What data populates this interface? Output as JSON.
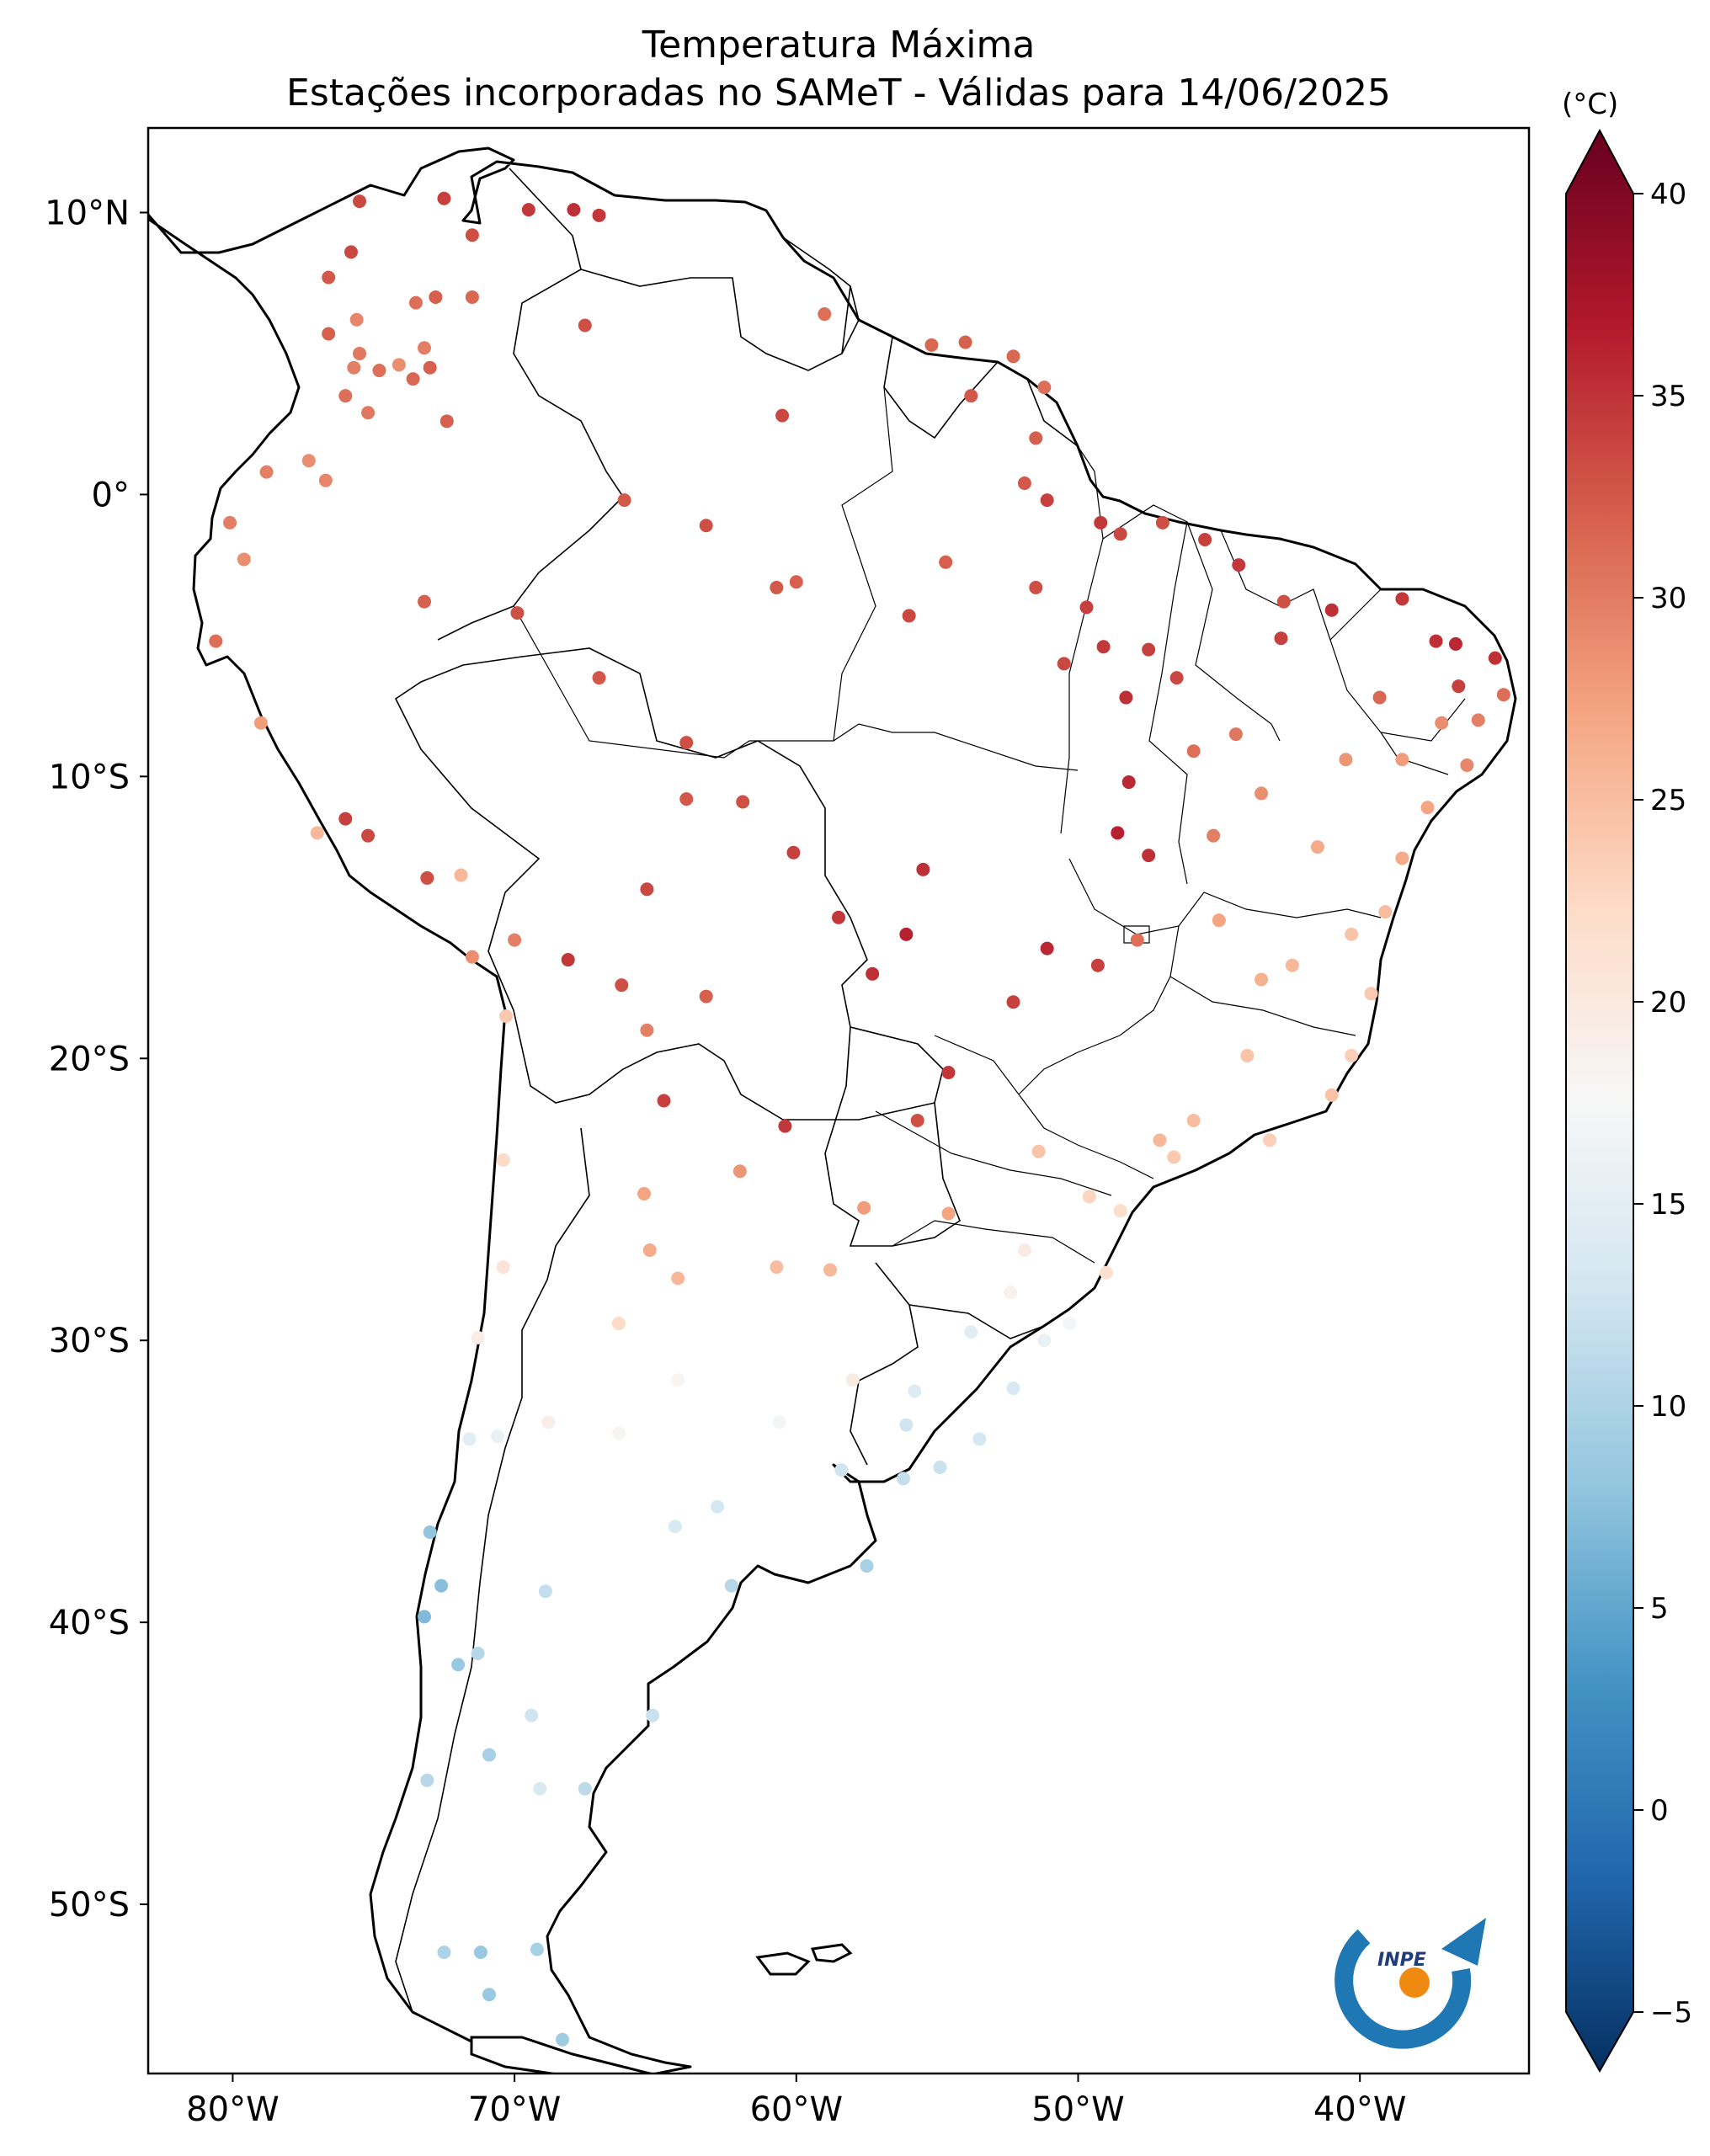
{
  "title": {
    "line1": "Temperatura Máxima",
    "line2": "Estações incorporadas no SAMeT - Válidas para 14/06/2025"
  },
  "map": {
    "projection": "PlateCarree",
    "extent": {
      "lon_min": -83,
      "lon_max": -34,
      "lat_min": -56,
      "lat_max": 13
    },
    "lon_ticks": [
      {
        "value": -80,
        "label": "80°W"
      },
      {
        "value": -70,
        "label": "70°W"
      },
      {
        "value": -60,
        "label": "60°W"
      },
      {
        "value": -50,
        "label": "50°W"
      },
      {
        "value": -40,
        "label": "40°W"
      }
    ],
    "lat_ticks": [
      {
        "value": 10,
        "label": "10°N"
      },
      {
        "value": 0,
        "label": "0°"
      },
      {
        "value": -10,
        "label": "10°S"
      },
      {
        "value": -20,
        "label": "20°S"
      },
      {
        "value": -30,
        "label": "30°S"
      },
      {
        "value": -40,
        "label": "40°S"
      },
      {
        "value": -50,
        "label": "50°S"
      }
    ],
    "logo_text": "INPE"
  },
  "colorbar": {
    "unit": "(°C)",
    "cmap": "RdBu_r",
    "vmin": -5,
    "vmax": 40,
    "extend": "both",
    "ticks": [
      -5,
      0,
      5,
      10,
      15,
      20,
      25,
      30,
      35,
      40
    ],
    "colors": [
      "#053061",
      "#2166ac",
      "#4393c3",
      "#92c5de",
      "#d1e5f0",
      "#f7f7f7",
      "#fddbc7",
      "#f4a582",
      "#d6604d",
      "#b2182b",
      "#67001f"
    ]
  },
  "stations": [
    {
      "lon": -75.5,
      "lat": 10.4,
      "t": 32.5
    },
    {
      "lon": -72.5,
      "lat": 10.5,
      "t": 33
    },
    {
      "lon": -69.5,
      "lat": 10.1,
      "t": 33.5
    },
    {
      "lon": -67.9,
      "lat": 10.1,
      "t": 34
    },
    {
      "lon": -67.0,
      "lat": 9.9,
      "t": 33.5
    },
    {
      "lon": -71.5,
      "lat": 9.2,
      "t": 32
    },
    {
      "lon": -75.8,
      "lat": 8.6,
      "t": 32.5
    },
    {
      "lon": -76.6,
      "lat": 7.7,
      "t": 31.5
    },
    {
      "lon": -73.5,
      "lat": 6.8,
      "t": 30
    },
    {
      "lon": -72.8,
      "lat": 7.0,
      "t": 31
    },
    {
      "lon": -71.5,
      "lat": 7.0,
      "t": 30.5
    },
    {
      "lon": -67.5,
      "lat": 6.0,
      "t": 32
    },
    {
      "lon": -75.6,
      "lat": 6.2,
      "t": 28.5
    },
    {
      "lon": -76.6,
      "lat": 5.7,
      "t": 31
    },
    {
      "lon": -75.5,
      "lat": 5.0,
      "t": 29.5
    },
    {
      "lon": -74.1,
      "lat": 4.6,
      "t": 28
    },
    {
      "lon": -75.7,
      "lat": 4.5,
      "t": 29
    },
    {
      "lon": -73.0,
      "lat": 4.5,
      "t": 31
    },
    {
      "lon": -74.8,
      "lat": 4.4,
      "t": 30
    },
    {
      "lon": -73.2,
      "lat": 5.2,
      "t": 29
    },
    {
      "lon": -73.6,
      "lat": 4.1,
      "t": 30.5
    },
    {
      "lon": -75.2,
      "lat": 2.9,
      "t": 29.5
    },
    {
      "lon": -76.0,
      "lat": 3.5,
      "t": 30
    },
    {
      "lon": -72.4,
      "lat": 2.6,
      "t": 31
    },
    {
      "lon": -77.3,
      "lat": 1.2,
      "t": 28
    },
    {
      "lon": -78.8,
      "lat": 0.8,
      "t": 29
    },
    {
      "lon": -76.7,
      "lat": 0.5,
      "t": 28.5
    },
    {
      "lon": -80.1,
      "lat": -1.0,
      "t": 29
    },
    {
      "lon": -79.6,
      "lat": -2.3,
      "t": 28
    },
    {
      "lon": -66.1,
      "lat": -0.2,
      "t": 31.5
    },
    {
      "lon": -63.2,
      "lat": -1.1,
      "t": 32
    },
    {
      "lon": -60.5,
      "lat": 2.8,
      "t": 32.5
    },
    {
      "lon": -59.0,
      "lat": 6.4,
      "t": 30
    },
    {
      "lon": -55.2,
      "lat": 5.3,
      "t": 30.5
    },
    {
      "lon": -54.0,
      "lat": 5.4,
      "t": 31
    },
    {
      "lon": -52.3,
      "lat": 4.9,
      "t": 30.5
    },
    {
      "lon": -53.8,
      "lat": 3.5,
      "t": 31.5
    },
    {
      "lon": -51.2,
      "lat": 3.8,
      "t": 30
    },
    {
      "lon": -51.5,
      "lat": 2.0,
      "t": 31
    },
    {
      "lon": -51.9,
      "lat": 0.4,
      "t": 31.5
    },
    {
      "lon": -51.1,
      "lat": -0.2,
      "t": 33
    },
    {
      "lon": -49.2,
      "lat": -1.0,
      "t": 33.5
    },
    {
      "lon": -48.5,
      "lat": -1.4,
      "t": 32.5
    },
    {
      "lon": -47.0,
      "lat": -1.0,
      "t": 32
    },
    {
      "lon": -45.5,
      "lat": -1.6,
      "t": 33
    },
    {
      "lon": -44.3,
      "lat": -2.5,
      "t": 33.5
    },
    {
      "lon": -42.7,
      "lat": -3.8,
      "t": 32
    },
    {
      "lon": -41.0,
      "lat": -4.1,
      "t": 34
    },
    {
      "lon": -38.5,
      "lat": -3.7,
      "t": 33.5
    },
    {
      "lon": -37.3,
      "lat": -5.2,
      "t": 34
    },
    {
      "lon": -36.6,
      "lat": -5.3,
      "t": 34.5
    },
    {
      "lon": -35.2,
      "lat": -5.8,
      "t": 34
    },
    {
      "lon": -36.5,
      "lat": -6.8,
      "t": 33
    },
    {
      "lon": -34.9,
      "lat": -7.1,
      "t": 30
    },
    {
      "lon": -35.8,
      "lat": -8.0,
      "t": 29
    },
    {
      "lon": -37.1,
      "lat": -8.1,
      "t": 28
    },
    {
      "lon": -38.5,
      "lat": -9.4,
      "t": 27
    },
    {
      "lon": -36.2,
      "lat": -9.6,
      "t": 28.5
    },
    {
      "lon": -37.6,
      "lat": -11.1,
      "t": 26.5
    },
    {
      "lon": -38.5,
      "lat": -12.9,
      "t": 26
    },
    {
      "lon": -39.1,
      "lat": -14.8,
      "t": 24.5
    },
    {
      "lon": -40.3,
      "lat": -15.6,
      "t": 24
    },
    {
      "lon": -39.6,
      "lat": -17.7,
      "t": 23.5
    },
    {
      "lon": -40.3,
      "lat": -19.9,
      "t": 23
    },
    {
      "lon": -41.0,
      "lat": -21.3,
      "t": 24
    },
    {
      "lon": -43.2,
      "lat": -22.9,
      "t": 23
    },
    {
      "lon": -46.6,
      "lat": -23.5,
      "t": 23.5
    },
    {
      "lon": -48.5,
      "lat": -25.4,
      "t": 21.5
    },
    {
      "lon": -49.0,
      "lat": -27.6,
      "t": 21
    },
    {
      "lon": -51.2,
      "lat": -30.0,
      "t": 16
    },
    {
      "lon": -52.3,
      "lat": -31.7,
      "t": 14
    },
    {
      "lon": -53.5,
      "lat": -33.5,
      "t": 13.5
    },
    {
      "lon": -56.2,
      "lat": -34.9,
      "t": 12
    },
    {
      "lon": -58.4,
      "lat": -34.6,
      "t": 13
    },
    {
      "lon": -57.5,
      "lat": -38.0,
      "t": 10
    },
    {
      "lon": -62.3,
      "lat": -38.7,
      "t": 11
    },
    {
      "lon": -65.1,
      "lat": -43.3,
      "t": 12.5
    },
    {
      "lon": -67.5,
      "lat": -45.9,
      "t": 11.5
    },
    {
      "lon": -69.2,
      "lat": -51.6,
      "t": 10
    },
    {
      "lon": -70.9,
      "lat": -53.2,
      "t": 9
    },
    {
      "lon": -68.3,
      "lat": -54.8,
      "t": 9.5
    },
    {
      "lon": -71.2,
      "lat": -51.7,
      "t": 9
    },
    {
      "lon": -72.5,
      "lat": -51.7,
      "t": 10.5
    },
    {
      "lon": -73.1,
      "lat": -45.6,
      "t": 11
    },
    {
      "lon": -72.0,
      "lat": -41.5,
      "t": 9
    },
    {
      "lon": -73.2,
      "lat": -39.8,
      "t": 7.5
    },
    {
      "lon": -72.6,
      "lat": -38.7,
      "t": 8
    },
    {
      "lon": -73.0,
      "lat": -36.8,
      "t": 8.5
    },
    {
      "lon": -71.6,
      "lat": -33.5,
      "t": 15
    },
    {
      "lon": -70.6,
      "lat": -33.4,
      "t": 16
    },
    {
      "lon": -71.3,
      "lat": -29.9,
      "t": 19
    },
    {
      "lon": -70.4,
      "lat": -27.4,
      "t": 20.5
    },
    {
      "lon": -70.4,
      "lat": -23.6,
      "t": 22
    },
    {
      "lon": -70.3,
      "lat": -18.5,
      "t": 23.5
    },
    {
      "lon": -71.5,
      "lat": -16.4,
      "t": 28
    },
    {
      "lon": -70.0,
      "lat": -15.8,
      "t": 29
    },
    {
      "lon": -71.9,
      "lat": -13.5,
      "t": 25
    },
    {
      "lon": -73.1,
      "lat": -13.6,
      "t": 32
    },
    {
      "lon": -75.2,
      "lat": -12.1,
      "t": 32.5
    },
    {
      "lon": -76.0,
      "lat": -11.5,
      "t": 33
    },
    {
      "lon": -77.0,
      "lat": -12.0,
      "t": 25
    },
    {
      "lon": -79.0,
      "lat": -8.1,
      "t": 27
    },
    {
      "lon": -80.6,
      "lat": -5.2,
      "t": 30
    },
    {
      "lon": -73.2,
      "lat": -3.8,
      "t": 31
    },
    {
      "lon": -69.9,
      "lat": -4.2,
      "t": 32
    },
    {
      "lon": -67.0,
      "lat": -6.5,
      "t": 31.5
    },
    {
      "lon": -63.9,
      "lat": -8.8,
      "t": 32
    },
    {
      "lon": -60.0,
      "lat": -3.1,
      "t": 31
    },
    {
      "lon": -60.7,
      "lat": -3.3,
      "t": 31.5
    },
    {
      "lon": -56.0,
      "lat": -4.3,
      "t": 32.5
    },
    {
      "lon": -54.7,
      "lat": -2.4,
      "t": 31
    },
    {
      "lon": -51.5,
      "lat": -3.3,
      "t": 32
    },
    {
      "lon": -49.7,
      "lat": -4.0,
      "t": 33
    },
    {
      "lon": -50.5,
      "lat": -6.0,
      "t": 32.5
    },
    {
      "lon": -49.1,
      "lat": -5.4,
      "t": 33.5
    },
    {
      "lon": -48.3,
      "lat": -7.2,
      "t": 34
    },
    {
      "lon": -48.2,
      "lat": -10.2,
      "t": 34.5
    },
    {
      "lon": -48.6,
      "lat": -12.0,
      "t": 35
    },
    {
      "lon": -47.5,
      "lat": -12.8,
      "t": 34
    },
    {
      "lon": -47.9,
      "lat": -15.8,
      "t": 30
    },
    {
      "lon": -49.3,
      "lat": -16.7,
      "t": 33
    },
    {
      "lon": -51.1,
      "lat": -16.1,
      "t": 34.5
    },
    {
      "lon": -52.3,
      "lat": -18.0,
      "t": 33
    },
    {
      "lon": -54.6,
      "lat": -20.5,
      "t": 33.5
    },
    {
      "lon": -55.7,
      "lat": -22.2,
      "t": 32
    },
    {
      "lon": -56.1,
      "lat": -15.6,
      "t": 35
    },
    {
      "lon": -55.5,
      "lat": -13.3,
      "t": 34
    },
    {
      "lon": -58.5,
      "lat": -15.0,
      "t": 33.5
    },
    {
      "lon": -57.3,
      "lat": -17.0,
      "t": 34
    },
    {
      "lon": -60.1,
      "lat": -12.7,
      "t": 33
    },
    {
      "lon": -61.9,
      "lat": -10.9,
      "t": 32
    },
    {
      "lon": -63.9,
      "lat": -10.8,
      "t": 31.5
    },
    {
      "lon": -65.3,
      "lat": -14.0,
      "t": 32.5
    },
    {
      "lon": -63.2,
      "lat": -17.8,
      "t": 31
    },
    {
      "lon": -66.2,
      "lat": -17.4,
      "t": 32
    },
    {
      "lon": -68.1,
      "lat": -16.5,
      "t": 33.5
    },
    {
      "lon": -65.3,
      "lat": -19.0,
      "t": 29
    },
    {
      "lon": -64.7,
      "lat": -21.5,
      "t": 33
    },
    {
      "lon": -60.4,
      "lat": -22.4,
      "t": 33.5
    },
    {
      "lon": -57.6,
      "lat": -25.3,
      "t": 27
    },
    {
      "lon": -54.6,
      "lat": -25.5,
      "t": 26.5
    },
    {
      "lon": -58.8,
      "lat": -27.5,
      "t": 25
    },
    {
      "lon": -60.7,
      "lat": -27.4,
      "t": 24.5
    },
    {
      "lon": -64.2,
      "lat": -27.8,
      "t": 25
    },
    {
      "lon": -65.2,
      "lat": -26.8,
      "t": 26
    },
    {
      "lon": -65.4,
      "lat": -24.8,
      "t": 26.5
    },
    {
      "lon": -62.0,
      "lat": -24.0,
      "t": 27.5
    },
    {
      "lon": -66.3,
      "lat": -29.4,
      "t": 22
    },
    {
      "lon": -64.2,
      "lat": -31.4,
      "t": 18
    },
    {
      "lon": -68.8,
      "lat": -32.9,
      "t": 19
    },
    {
      "lon": -66.3,
      "lat": -33.3,
      "t": 18
    },
    {
      "lon": -60.6,
      "lat": -32.9,
      "t": 17
    },
    {
      "lon": -58.0,
      "lat": -31.4,
      "t": 19.5
    },
    {
      "lon": -62.8,
      "lat": -35.9,
      "t": 13.5
    },
    {
      "lon": -64.3,
      "lat": -36.6,
      "t": 14
    },
    {
      "lon": -68.9,
      "lat": -38.9,
      "t": 12
    },
    {
      "lon": -71.3,
      "lat": -41.1,
      "t": 11
    },
    {
      "lon": -69.4,
      "lat": -43.3,
      "t": 13
    },
    {
      "lon": -69.1,
      "lat": -45.9,
      "t": 14
    },
    {
      "lon": -70.9,
      "lat": -44.7,
      "t": 10
    },
    {
      "lon": -56.1,
      "lat": -33.0,
      "t": 13
    },
    {
      "lon": -54.9,
      "lat": -34.5,
      "t": 12.5
    },
    {
      "lon": -55.8,
      "lat": -31.8,
      "t": 14.5
    },
    {
      "lon": -53.8,
      "lat": -29.7,
      "t": 15
    },
    {
      "lon": -50.3,
      "lat": -29.4,
      "t": 17
    },
    {
      "lon": -52.4,
      "lat": -28.3,
      "t": 18.5
    },
    {
      "lon": -51.9,
      "lat": -26.8,
      "t": 19.5
    },
    {
      "lon": -49.6,
      "lat": -24.9,
      "t": 22.5
    },
    {
      "lon": -51.4,
      "lat": -23.3,
      "t": 24
    },
    {
      "lon": -47.1,
      "lat": -22.9,
      "t": 25
    },
    {
      "lon": -45.9,
      "lat": -22.2,
      "t": 24.5
    },
    {
      "lon": -44.0,
      "lat": -19.9,
      "t": 24
    },
    {
      "lon": -43.5,
      "lat": -17.2,
      "t": 25.5
    },
    {
      "lon": -45.0,
      "lat": -15.1,
      "t": 26.5
    },
    {
      "lon": -42.4,
      "lat": -16.7,
      "t": 25
    },
    {
      "lon": -41.5,
      "lat": -12.5,
      "t": 26
    },
    {
      "lon": -43.5,
      "lat": -10.6,
      "t": 28
    },
    {
      "lon": -45.2,
      "lat": -12.1,
      "t": 29
    },
    {
      "lon": -44.4,
      "lat": -8.5,
      "t": 29.5
    },
    {
      "lon": -42.8,
      "lat": -5.1,
      "t": 33
    },
    {
      "lon": -39.3,
      "lat": -7.2,
      "t": 30.5
    },
    {
      "lon": -40.5,
      "lat": -9.4,
      "t": 27.5
    },
    {
      "lon": -45.9,
      "lat": -9.1,
      "t": 30
    },
    {
      "lon": -46.5,
      "lat": -6.5,
      "t": 32.5
    },
    {
      "lon": -47.5,
      "lat": -5.5,
      "t": 33
    }
  ]
}
